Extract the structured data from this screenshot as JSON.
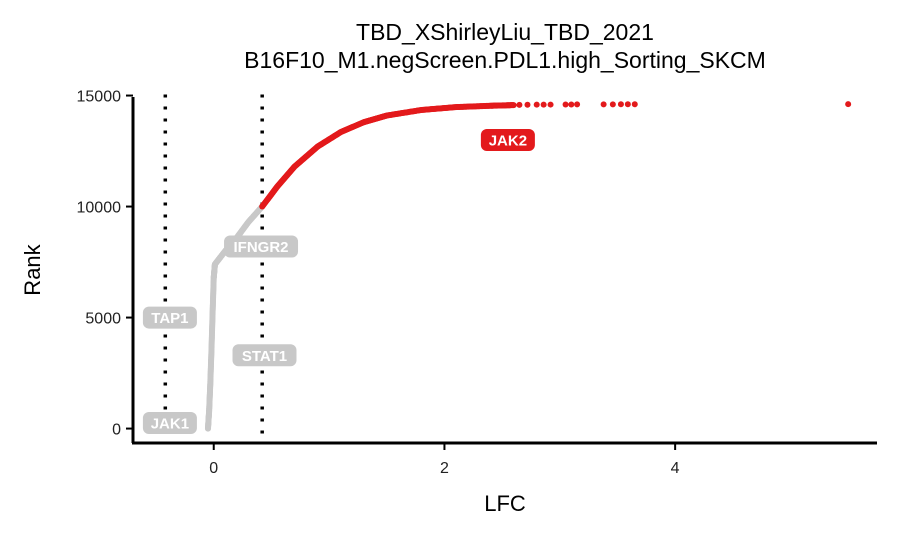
{
  "chart_data": {
    "type": "scatter",
    "title": "TBD_XShirleyLiu_TBD_2021",
    "subtitle": "B16F10_M1.negScreen.PDL1.high_Sorting_SKCM",
    "xlabel": "LFC",
    "ylabel": "Rank",
    "xlim": [
      -0.7,
      5.75
    ],
    "ylim": [
      -650,
      15250
    ],
    "xticks": [
      0,
      2,
      4
    ],
    "yticks": [
      0,
      5000,
      10000,
      15000
    ],
    "grid": false,
    "thresholds_x": [
      -0.42,
      0.42
    ],
    "colors": {
      "significant": "#e31a1c",
      "nonsignificant": "#c8c8c8",
      "threshold": "#000000"
    },
    "series": [
      {
        "group": "nonsignificant",
        "curve": [
          [
            -0.05,
            0
          ],
          [
            -0.04,
            800
          ],
          [
            -0.03,
            2000
          ],
          [
            -0.02,
            3500
          ],
          [
            -0.01,
            5200
          ],
          [
            0.0,
            6800
          ],
          [
            0.01,
            7400
          ],
          [
            0.1,
            8000
          ],
          [
            0.2,
            8600
          ],
          [
            0.3,
            9300
          ],
          [
            0.42,
            10000
          ]
        ]
      },
      {
        "group": "significant",
        "curve": [
          [
            0.42,
            10000
          ],
          [
            0.55,
            10900
          ],
          [
            0.7,
            11800
          ],
          [
            0.9,
            12700
          ],
          [
            1.1,
            13350
          ],
          [
            1.3,
            13800
          ],
          [
            1.5,
            14100
          ],
          [
            1.8,
            14350
          ],
          [
            2.1,
            14480
          ],
          [
            2.4,
            14540
          ],
          [
            2.6,
            14570
          ]
        ],
        "outliers": [
          [
            2.65,
            14580
          ],
          [
            2.72,
            14585
          ],
          [
            2.8,
            14590
          ],
          [
            2.86,
            14592
          ],
          [
            2.92,
            14594
          ],
          [
            3.05,
            14596
          ],
          [
            3.1,
            14598
          ],
          [
            3.15,
            14600
          ],
          [
            3.38,
            14602
          ],
          [
            3.46,
            14604
          ],
          [
            3.53,
            14606
          ],
          [
            3.59,
            14608
          ],
          [
            3.65,
            14610
          ],
          [
            5.5,
            14612
          ]
        ]
      }
    ],
    "labels": [
      {
        "text": "JAK2",
        "x": 2.55,
        "y": 13000,
        "group": "significant"
      },
      {
        "text": "IFNGR2",
        "x": 0.41,
        "y": 8200,
        "group": "nonsignificant"
      },
      {
        "text": "TAP1",
        "x": -0.38,
        "y": 5000,
        "group": "nonsignificant"
      },
      {
        "text": "STAT1",
        "x": 0.44,
        "y": 3300,
        "group": "nonsignificant"
      },
      {
        "text": "JAK1",
        "x": -0.38,
        "y": 250,
        "group": "nonsignificant"
      }
    ]
  }
}
